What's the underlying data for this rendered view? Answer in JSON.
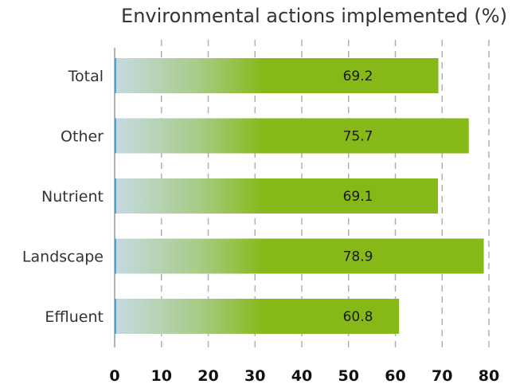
{
  "chart_data": {
    "type": "bar",
    "orientation": "horizontal",
    "title": "Environmental actions implemented (%)",
    "categories": [
      "Total",
      "Other",
      "Nutrient",
      "Landscape",
      "Effluent"
    ],
    "values": [
      69.2,
      75.7,
      69.1,
      78.9,
      60.8
    ],
    "value_labels": [
      "69.2",
      "75.7",
      "69.1",
      "78.9",
      "60.8"
    ],
    "xlim": [
      0,
      80
    ],
    "xticks": [
      "0",
      "10",
      "20",
      "30",
      "40",
      "50",
      "60",
      "70",
      "80"
    ],
    "xlabel": "",
    "ylabel": "",
    "grid": "vertical dashed",
    "colors": {
      "bar": "#86b817",
      "bar_fade": "#c6d9e2",
      "grid": "#b0b0b0",
      "axis": "#999999"
    }
  }
}
